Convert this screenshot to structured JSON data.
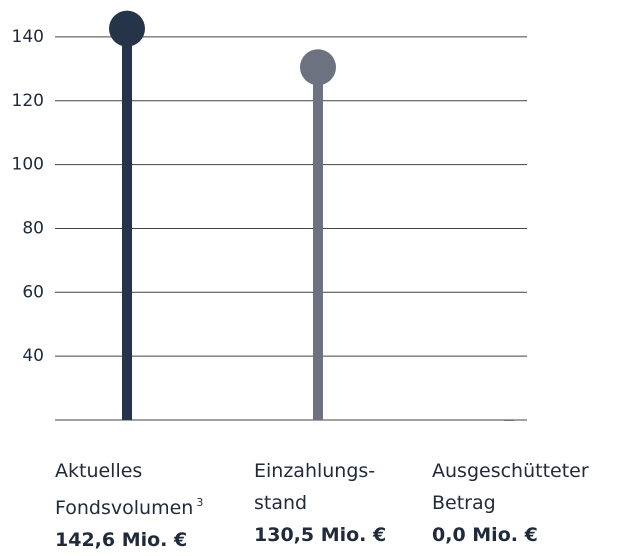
{
  "chart_data": {
    "type": "lollipop",
    "categories": [
      "Aktuelles Fondsvolumen",
      "Einzahlungs-stand",
      "Ausgeschütteter Betrag"
    ],
    "category_notes": [
      "3",
      null,
      null
    ],
    "values": [
      142.6,
      130.5,
      0.0
    ],
    "value_labels": [
      "142,6 Mio. €",
      "130,5 Mio. €",
      "0,0 Mio. €"
    ],
    "colors": [
      "#253448",
      "#6c7280",
      "#6c7280"
    ],
    "ylim": [
      20,
      150
    ],
    "yticks": [
      40,
      60,
      80,
      100,
      120,
      140
    ],
    "grid": true
  }
}
